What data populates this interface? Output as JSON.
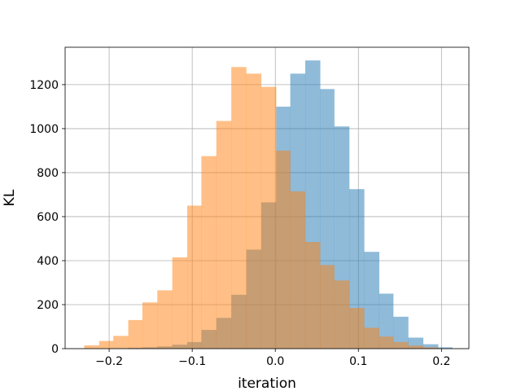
{
  "chart_data": {
    "type": "histogram",
    "title": "",
    "xlabel": "iteration",
    "ylabel": "KL",
    "xlim": [
      -0.253,
      0.233
    ],
    "ylim": [
      0,
      1370
    ],
    "xticks": [
      -0.2,
      -0.1,
      0.0,
      0.1,
      0.2
    ],
    "xtick_labels": [
      "−0.2",
      "−0.1",
      "0.0",
      "0.1",
      "0.2"
    ],
    "yticks": [
      0,
      200,
      400,
      600,
      800,
      1000,
      1200
    ],
    "ytick_labels": [
      "0",
      "200",
      "400",
      "600",
      "800",
      "1000",
      "1200"
    ],
    "grid": true,
    "series": [
      {
        "color": "#1f77b4",
        "alpha": 0.5,
        "bins": [
          [
            -0.195,
            -0.177,
            2
          ],
          [
            -0.177,
            -0.16,
            4
          ],
          [
            -0.16,
            -0.142,
            6
          ],
          [
            -0.142,
            -0.124,
            10
          ],
          [
            -0.124,
            -0.106,
            18
          ],
          [
            -0.106,
            -0.089,
            30
          ],
          [
            -0.089,
            -0.071,
            85
          ],
          [
            -0.071,
            -0.053,
            140
          ],
          [
            -0.053,
            -0.035,
            245
          ],
          [
            -0.035,
            -0.017,
            450
          ],
          [
            -0.017,
            0.001,
            665
          ],
          [
            0.001,
            0.018,
            1100
          ],
          [
            0.018,
            0.036,
            1250
          ],
          [
            0.036,
            0.054,
            1310
          ],
          [
            0.054,
            0.071,
            1180
          ],
          [
            0.071,
            0.089,
            1010
          ],
          [
            0.089,
            0.107,
            725
          ],
          [
            0.107,
            0.125,
            440
          ],
          [
            0.125,
            0.142,
            250
          ],
          [
            0.142,
            0.16,
            145
          ],
          [
            0.16,
            0.178,
            50
          ],
          [
            0.178,
            0.196,
            20
          ],
          [
            0.196,
            0.213,
            6
          ]
        ]
      },
      {
        "color": "#ff7f0e",
        "alpha": 0.5,
        "bins": [
          [
            -0.23,
            -0.212,
            15
          ],
          [
            -0.212,
            -0.195,
            35
          ],
          [
            -0.195,
            -0.177,
            58
          ],
          [
            -0.177,
            -0.16,
            130
          ],
          [
            -0.16,
            -0.142,
            210
          ],
          [
            -0.142,
            -0.124,
            265
          ],
          [
            -0.124,
            -0.106,
            415
          ],
          [
            -0.106,
            -0.089,
            650
          ],
          [
            -0.089,
            -0.071,
            875
          ],
          [
            -0.071,
            -0.053,
            1035
          ],
          [
            -0.053,
            -0.035,
            1280
          ],
          [
            -0.035,
            -0.017,
            1250
          ],
          [
            -0.017,
            0.001,
            1190
          ],
          [
            0.001,
            0.018,
            900
          ],
          [
            0.018,
            0.036,
            715
          ],
          [
            0.036,
            0.054,
            485
          ],
          [
            0.054,
            0.071,
            380
          ],
          [
            0.071,
            0.089,
            310
          ],
          [
            0.089,
            0.107,
            185
          ],
          [
            0.107,
            0.125,
            95
          ],
          [
            0.125,
            0.142,
            55
          ],
          [
            0.142,
            0.16,
            30
          ],
          [
            0.16,
            0.178,
            14
          ],
          [
            0.178,
            0.196,
            6
          ]
        ]
      }
    ]
  }
}
